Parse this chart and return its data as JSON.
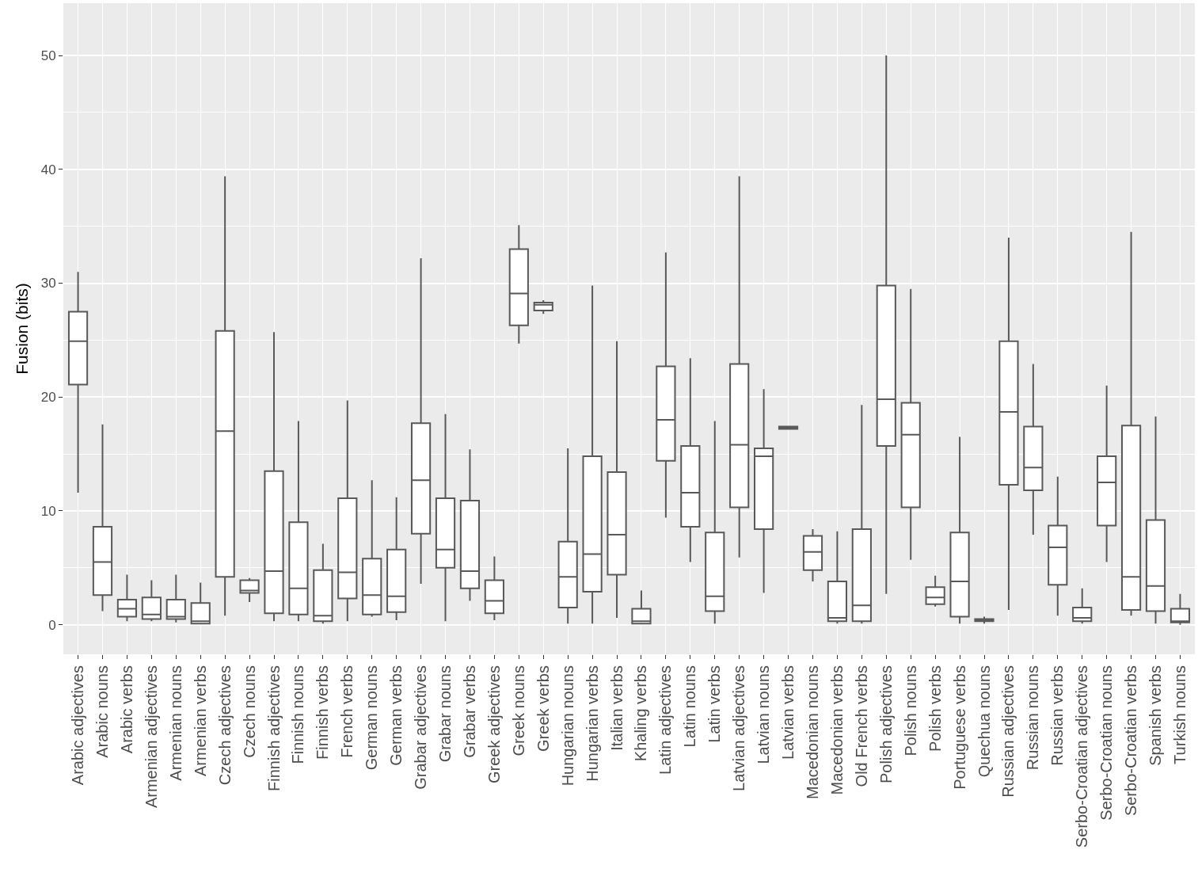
{
  "chart_data": {
    "type": "box",
    "ylabel": "Fusion (bits)",
    "ylim": [
      -2.6,
      54.6
    ],
    "yticks": [
      0,
      10,
      20,
      30,
      40,
      50
    ],
    "grid": true,
    "categories": [
      "Arabic adjectives",
      "Arabic nouns",
      "Arabic verbs",
      "Armenian adjectives",
      "Armenian nouns",
      "Armenian verbs",
      "Czech adjectives",
      "Czech nouns",
      "Finnish adjectives",
      "Finnish nouns",
      "Finnish verbs",
      "French verbs",
      "German nouns",
      "German verbs",
      "Grabar adjectives",
      "Grabar nouns",
      "Grabar verbs",
      "Greek adjectives",
      "Greek nouns",
      "Greek verbs",
      "Hungarian nouns",
      "Hungarian verbs",
      "Italian verbs",
      "Khaling verbs",
      "Latin adjectives",
      "Latin nouns",
      "Latin verbs",
      "Latvian adjectives",
      "Latvian nouns",
      "Latvian verbs",
      "Macedonian nouns",
      "Macedonian verbs",
      "Old French verbs",
      "Polish adjectives",
      "Polish nouns",
      "Polish verbs",
      "Portuguese verbs",
      "Quechua nouns",
      "Russian adjectives",
      "Russian nouns",
      "Russian verbs",
      "Serbo-Croatian adjectives",
      "Serbo-Croatian nouns",
      "Serbo-Croatian verbs",
      "Spanish verbs",
      "Turkish nouns"
    ],
    "series": [
      {
        "color": "#595959",
        "boxes": [
          {
            "low": 11.6,
            "q1": 21.1,
            "median": 24.9,
            "q3": 27.5,
            "high": 31.0
          },
          {
            "low": 1.2,
            "q1": 2.6,
            "median": 5.5,
            "q3": 8.6,
            "high": 17.6
          },
          {
            "low": 0.3,
            "q1": 0.7,
            "median": 1.4,
            "q3": 2.2,
            "high": 4.4
          },
          {
            "low": 0.3,
            "q1": 0.5,
            "median": 0.9,
            "q3": 2.4,
            "high": 3.9
          },
          {
            "low": 0.2,
            "q1": 0.5,
            "median": 0.7,
            "q3": 2.2,
            "high": 4.4
          },
          {
            "low": 0.1,
            "q1": 0.1,
            "median": 0.3,
            "q3": 1.9,
            "high": 3.7
          },
          {
            "low": 0.8,
            "q1": 4.2,
            "median": 17.0,
            "q3": 25.8,
            "high": 39.4
          },
          {
            "low": 2.0,
            "q1": 2.8,
            "median": 3.0,
            "q3": 3.9,
            "high": 4.1
          },
          {
            "low": 0.3,
            "q1": 1.0,
            "median": 4.7,
            "q3": 13.5,
            "high": 25.7
          },
          {
            "low": 0.3,
            "q1": 0.9,
            "median": 3.2,
            "q3": 9.0,
            "high": 17.9
          },
          {
            "low": 0.1,
            "q1": 0.3,
            "median": 0.8,
            "q3": 4.8,
            "high": 7.1
          },
          {
            "low": 0.3,
            "q1": 2.3,
            "median": 4.6,
            "q3": 11.1,
            "high": 19.7
          },
          {
            "low": 0.7,
            "q1": 0.9,
            "median": 2.6,
            "q3": 5.8,
            "high": 12.7
          },
          {
            "low": 0.4,
            "q1": 1.1,
            "median": 2.5,
            "q3": 6.6,
            "high": 11.2
          },
          {
            "low": 3.6,
            "q1": 8.0,
            "median": 12.7,
            "q3": 17.7,
            "high": 32.2
          },
          {
            "low": 0.3,
            "q1": 5.0,
            "median": 6.6,
            "q3": 11.1,
            "high": 18.5
          },
          {
            "low": 2.1,
            "q1": 3.2,
            "median": 4.7,
            "q3": 10.9,
            "high": 15.4
          },
          {
            "low": 0.4,
            "q1": 1.0,
            "median": 2.1,
            "q3": 3.9,
            "high": 6.0
          },
          {
            "low": 24.7,
            "q1": 26.3,
            "median": 29.1,
            "q3": 33.0,
            "high": 35.1
          },
          {
            "low": 27.3,
            "q1": 27.6,
            "median": 28.1,
            "q3": 28.3,
            "high": 28.5
          },
          {
            "low": 0.1,
            "q1": 1.5,
            "median": 4.2,
            "q3": 7.3,
            "high": 15.5
          },
          {
            "low": 0.1,
            "q1": 2.9,
            "median": 6.2,
            "q3": 14.8,
            "high": 29.8
          },
          {
            "low": 0.6,
            "q1": 4.4,
            "median": 7.9,
            "q3": 13.4,
            "high": 24.9
          },
          {
            "low": 0.1,
            "q1": 0.1,
            "median": 0.3,
            "q3": 1.4,
            "high": 3.0
          },
          {
            "low": 9.4,
            "q1": 14.4,
            "median": 18.0,
            "q3": 22.7,
            "high": 32.7
          },
          {
            "low": 5.5,
            "q1": 8.6,
            "median": 11.6,
            "q3": 15.7,
            "high": 23.4
          },
          {
            "low": 0.1,
            "q1": 1.2,
            "median": 2.5,
            "q3": 8.1,
            "high": 17.9
          },
          {
            "low": 5.9,
            "q1": 10.3,
            "median": 15.8,
            "q3": 22.9,
            "high": 39.4
          },
          {
            "low": 2.8,
            "q1": 8.4,
            "median": 14.8,
            "q3": 15.5,
            "high": 20.7
          },
          {
            "low": 17.2,
            "q1": 17.2,
            "median": 17.3,
            "q3": 17.4,
            "high": 17.4
          },
          {
            "low": 3.8,
            "q1": 4.8,
            "median": 6.4,
            "q3": 7.8,
            "high": 8.4
          },
          {
            "low": 0.1,
            "q1": 0.3,
            "median": 0.6,
            "q3": 3.8,
            "high": 8.2
          },
          {
            "low": 0.1,
            "q1": 0.3,
            "median": 1.7,
            "q3": 8.4,
            "high": 19.3
          },
          {
            "low": 2.7,
            "q1": 15.7,
            "median": 19.8,
            "q3": 29.8,
            "high": 50.0
          },
          {
            "low": 5.7,
            "q1": 10.3,
            "median": 16.7,
            "q3": 19.5,
            "high": 29.5
          },
          {
            "low": 1.6,
            "q1": 1.8,
            "median": 2.4,
            "q3": 3.3,
            "high": 4.3
          },
          {
            "low": 0.1,
            "q1": 0.7,
            "median": 3.8,
            "q3": 8.1,
            "high": 16.5
          },
          {
            "low": 0.1,
            "q1": 0.3,
            "median": 0.35,
            "q3": 0.5,
            "high": 0.7
          },
          {
            "low": 1.3,
            "q1": 12.3,
            "median": 18.7,
            "q3": 24.9,
            "high": 34.0
          },
          {
            "low": 7.9,
            "q1": 11.8,
            "median": 13.8,
            "q3": 17.4,
            "high": 22.9
          },
          {
            "low": 0.8,
            "q1": 3.5,
            "median": 6.8,
            "q3": 8.7,
            "high": 13.0
          },
          {
            "low": 0.1,
            "q1": 0.3,
            "median": 0.6,
            "q3": 1.5,
            "high": 3.2
          },
          {
            "low": 5.5,
            "q1": 8.7,
            "median": 12.5,
            "q3": 14.8,
            "high": 21.0
          },
          {
            "low": 0.8,
            "q1": 1.3,
            "median": 4.2,
            "q3": 17.5,
            "high": 34.5
          },
          {
            "low": 0.1,
            "q1": 1.2,
            "median": 3.4,
            "q3": 9.2,
            "high": 18.3
          },
          {
            "low": 0.0,
            "q1": 0.2,
            "median": 0.3,
            "q3": 1.4,
            "high": 2.7
          }
        ]
      }
    ]
  }
}
